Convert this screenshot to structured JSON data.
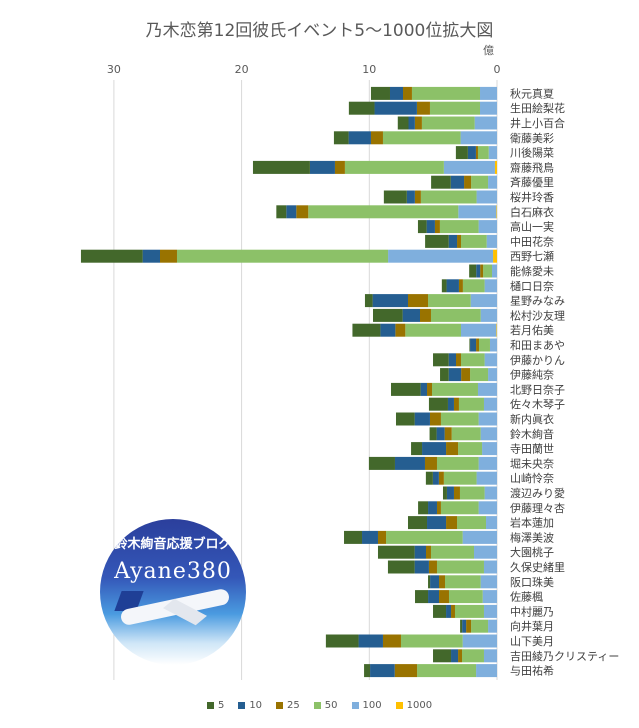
{
  "chart_data": {
    "type": "bar",
    "orientation": "horizontal-stacked",
    "title": "乃木恋第12回彼氏イベント5〜1000位拡大図",
    "unit_label": "億",
    "xlim": [
      0,
      32.6
    ],
    "x_reversed": true,
    "xticks": [
      30,
      20,
      10,
      0
    ],
    "grid": true,
    "legend_position": "bottom",
    "series_names": [
      "5",
      "10",
      "25",
      "50",
      "100",
      "1000"
    ],
    "colors": {
      "5": "#43682b",
      "10": "#255e91",
      "25": "#997300",
      "50": "#8cc168",
      "100": "#7fafdd",
      "1000": "#ffc000"
    },
    "categories": [
      "秋元真夏",
      "生田絵梨花",
      "井上小百合",
      "衛藤美彩",
      "川後陽菜",
      "齋藤飛鳥",
      "斉藤優里",
      "桜井玲香",
      "白石麻衣",
      "高山一実",
      "中田花奈",
      "西野七瀬",
      "能條愛未",
      "樋口日奈",
      "星野みなみ",
      "松村沙友理",
      "若月佑美",
      "和田まあや",
      "伊藤かりん",
      "伊藤純奈",
      "北野日奈子",
      "佐々木琴子",
      "新内眞衣",
      "鈴木絢音",
      "寺田蘭世",
      "堀未央奈",
      "山崎怜奈",
      "渡辺みり愛",
      "伊藤理々杏",
      "岩本蓮加",
      "梅澤美波",
      "大園桃子",
      "久保史緒里",
      "阪口珠美",
      "佐藤楓",
      "中村麗乃",
      "向井葉月",
      "山下美月",
      "吉田綾乃クリスティー",
      "与田祐希"
    ],
    "series": [
      {
        "name": "5",
        "values": [
          1.49,
          2.01,
          0.84,
          1.15,
          0.94,
          4.46,
          1.54,
          1.8,
          0.78,
          0.68,
          1.85,
          4.83,
          0.55,
          0.37,
          0.6,
          2.32,
          2.19,
          0.05,
          1.23,
          0.68,
          2.32,
          1.49,
          1.46,
          0.55,
          0.86,
          2.04,
          0.55,
          0.31,
          0.78,
          1.49,
          1.41,
          2.87,
          2.09,
          0.16,
          1.02,
          1.02,
          0.16,
          2.56,
          1.41,
          0.47
        ]
      },
      {
        "name": "10",
        "values": [
          1.02,
          3.32,
          0.5,
          1.75,
          0.63,
          1.96,
          1.04,
          0.63,
          0.78,
          0.65,
          0.65,
          1.36,
          0.31,
          0.97,
          2.77,
          1.36,
          1.17,
          0.47,
          0.57,
          0.97,
          0.5,
          0.47,
          1.2,
          0.63,
          1.88,
          2.35,
          0.47,
          0.55,
          0.7,
          1.49,
          1.25,
          0.89,
          1.12,
          0.7,
          0.86,
          0.39,
          0.31,
          1.91,
          0.55,
          1.93
        ]
      },
      {
        "name": "25",
        "values": [
          0.7,
          1.02,
          0.55,
          0.94,
          0.16,
          0.78,
          0.55,
          0.47,
          0.94,
          0.39,
          0.31,
          1.33,
          0.23,
          0.31,
          1.57,
          0.86,
          0.78,
          0.23,
          0.39,
          0.7,
          0.39,
          0.39,
          0.86,
          0.55,
          0.94,
          0.94,
          0.39,
          0.47,
          0.31,
          0.86,
          0.63,
          0.39,
          0.63,
          0.47,
          0.78,
          0.31,
          0.39,
          1.41,
          0.31,
          1.75
        ]
      },
      {
        "name": "50",
        "values": [
          5.33,
          3.92,
          4.13,
          6.08,
          0.84,
          7.75,
          1.33,
          4.36,
          11.75,
          3.03,
          2.01,
          16.53,
          0.7,
          1.7,
          3.34,
          3.89,
          4.36,
          0.86,
          1.85,
          1.41,
          3.6,
          1.96,
          2.95,
          2.27,
          1.88,
          3.26,
          2.56,
          1.93,
          2.95,
          2.27,
          6.0,
          3.37,
          3.68,
          2.79,
          2.64,
          2.27,
          1.33,
          4.83,
          1.72,
          4.62
        ]
      },
      {
        "name": "100",
        "values": [
          1.33,
          1.33,
          1.75,
          2.85,
          0.65,
          4.0,
          0.7,
          1.6,
          2.98,
          1.44,
          0.81,
          8.22,
          0.39,
          0.97,
          2.06,
          1.28,
          2.77,
          0.55,
          0.97,
          0.7,
          1.49,
          1.02,
          1.44,
          1.28,
          1.17,
          1.44,
          1.6,
          0.97,
          1.44,
          0.86,
          2.69,
          1.8,
          1.02,
          1.28,
          1.12,
          1.02,
          0.7,
          2.69,
          1.02,
          1.64
        ]
      },
      {
        "name": "1000",
        "values": [
          0,
          0,
          0,
          0,
          0,
          0.16,
          0,
          0,
          0.05,
          0,
          0,
          0.31,
          0,
          0,
          0,
          0,
          0.05,
          0,
          0,
          0,
          0,
          0,
          0,
          0,
          0,
          0,
          0,
          0,
          0,
          0,
          0,
          0,
          0,
          0,
          0,
          0,
          0,
          0,
          0,
          0
        ]
      }
    ]
  },
  "logo": {
    "subtitle": "鈴木絢音応援ブログ",
    "name": "Ayane380"
  }
}
